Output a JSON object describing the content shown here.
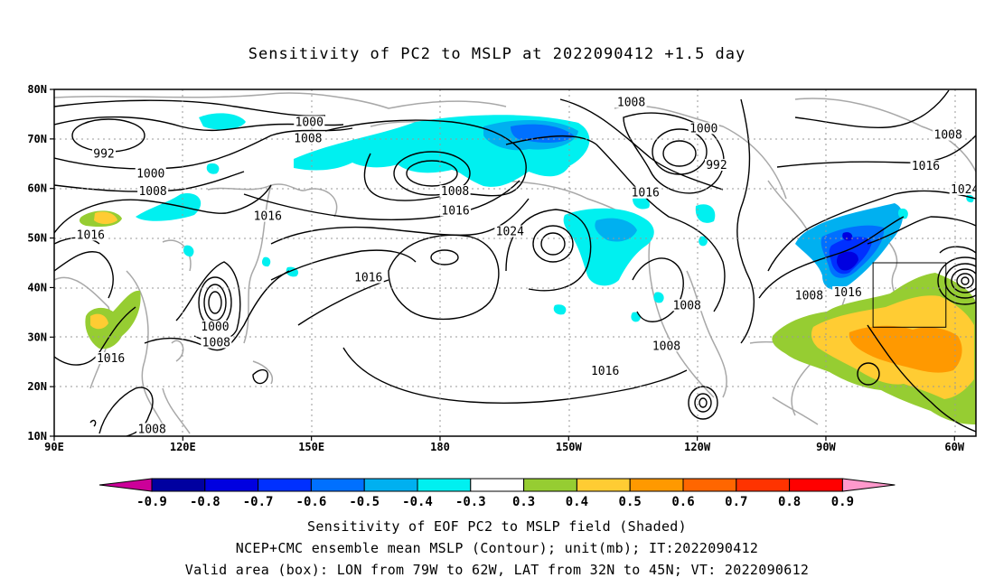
{
  "title": "Sensitivity of PC2 to MSLP at 2022090412 +1.5 day",
  "captions": [
    "Sensitivity of EOF PC2 to MSLP field (Shaded)",
    "NCEP+CMC ensemble mean MSLP (Contour); unit(mb); IT:2022090412",
    "Valid area (box): LON from 79W to 62W, LAT from 32N to 45N; VT: 2022090612"
  ],
  "map": {
    "lon_range": [
      90,
      305
    ],
    "lat_range": [
      10,
      80
    ],
    "lat_ticks": [
      {
        "value": 80,
        "label": "80N"
      },
      {
        "value": 70,
        "label": "70N"
      },
      {
        "value": 60,
        "label": "60N"
      },
      {
        "value": 50,
        "label": "50N"
      },
      {
        "value": 40,
        "label": "40N"
      },
      {
        "value": 30,
        "label": "30N"
      },
      {
        "value": 20,
        "label": "20N"
      },
      {
        "value": 10,
        "label": "10N"
      }
    ],
    "lon_ticks": [
      {
        "value": 90,
        "label": "90E"
      },
      {
        "value": 120,
        "label": "120E"
      },
      {
        "value": 150,
        "label": "150E"
      },
      {
        "value": 180,
        "label": "180"
      },
      {
        "value": 210,
        "label": "150W"
      },
      {
        "value": 240,
        "label": "120W"
      },
      {
        "value": 270,
        "label": "90W"
      },
      {
        "value": 300,
        "label": "60W"
      }
    ],
    "valid_box": {
      "lon": [
        281,
        298
      ],
      "lat": [
        32,
        45
      ]
    },
    "contour_labels": [
      {
        "text": "1000",
        "lon": 149.5,
        "lat": 73.2
      },
      {
        "text": "1008",
        "lon": 149.2,
        "lat": 69.9
      },
      {
        "text": "992",
        "lon": 101.6,
        "lat": 66.8
      },
      {
        "text": "1000",
        "lon": 112.5,
        "lat": 62.8
      },
      {
        "text": "1008",
        "lon": 113,
        "lat": 59.2
      },
      {
        "text": "1016",
        "lon": 98.5,
        "lat": 50.4
      },
      {
        "text": "1016",
        "lon": 139.8,
        "lat": 54.2
      },
      {
        "text": "1008",
        "lon": 112.8,
        "lat": 11.2
      },
      {
        "text": "1016",
        "lon": 103.2,
        "lat": 25.5
      },
      {
        "text": "1000",
        "lon": 127.5,
        "lat": 31.9
      },
      {
        "text": "1008",
        "lon": 127.8,
        "lat": 28.7
      },
      {
        "text": "1016",
        "lon": 163.3,
        "lat": 41.8
      },
      {
        "text": "1008",
        "lon": 183.5,
        "lat": 59.2
      },
      {
        "text": "1016",
        "lon": 183.6,
        "lat": 55.3
      },
      {
        "text": "1024",
        "lon": 196.3,
        "lat": 51.1
      },
      {
        "text": "1008",
        "lon": 224.6,
        "lat": 77.2
      },
      {
        "text": "1016",
        "lon": 227.9,
        "lat": 58.9
      },
      {
        "text": "1000",
        "lon": 241.5,
        "lat": 71.9
      },
      {
        "text": "992",
        "lon": 244.5,
        "lat": 64.5
      },
      {
        "text": "1008",
        "lon": 237.6,
        "lat": 36.2
      },
      {
        "text": "1008",
        "lon": 232.8,
        "lat": 28.0
      },
      {
        "text": "1016",
        "lon": 218.5,
        "lat": 22.9
      },
      {
        "text": "1008",
        "lon": 266.1,
        "lat": 38.2
      },
      {
        "text": "1016",
        "lon": 275.1,
        "lat": 38.8
      },
      {
        "text": "1008",
        "lon": 298.5,
        "lat": 70.6
      },
      {
        "text": "1016",
        "lon": 293.3,
        "lat": 64.3
      },
      {
        "text": "1024",
        "lon": 302.4,
        "lat": 59.6
      }
    ]
  },
  "colorbar": {
    "labels": [
      "-0.9",
      "-0.8",
      "-0.7",
      "-0.6",
      "-0.5",
      "-0.4",
      "-0.3",
      "0.3",
      "0.4",
      "0.5",
      "0.6",
      "0.7",
      "0.8",
      "0.9"
    ],
    "colors": [
      "#0000a0",
      "#0000e0",
      "#0030ff",
      "#0070ff",
      "#00b0f0",
      "#00f0f0",
      "#ffffff",
      "#96cd32",
      "#ffcc33",
      "#ff9900",
      "#ff6600",
      "#ff3300",
      "#ff0000"
    ],
    "left_arrow_color": "#cc0099",
    "right_arrow_color": "#ff99cc"
  }
}
